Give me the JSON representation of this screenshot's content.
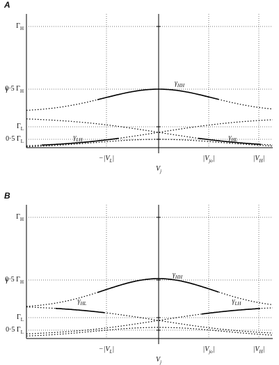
{
  "panels": [
    {
      "label": "A",
      "y_axis_label": "γ",
      "y_ticks": [
        {
          "pre": "Γ",
          "sub": "H"
        },
        {
          "pre": "0·5 Γ",
          "sub": "H"
        },
        {
          "pre": "Γ",
          "sub": "L"
        },
        {
          "pre": "0·5 Γ",
          "sub": "L"
        }
      ],
      "x_ticks": [
        {
          "pre": "−|V",
          "sub": "L",
          "post": "|"
        },
        {
          "pre": "|V",
          "sub": "jo",
          "post": "|"
        },
        {
          "pre": "|V",
          "sub": "H",
          "post": "|"
        }
      ],
      "x_axis_label": {
        "pre": "V",
        "sub": "j"
      },
      "curve_labels": [
        {
          "pre": "γ",
          "sub": "HH"
        },
        {
          "pre": "γ",
          "sub": "LH"
        },
        {
          "pre": "γ",
          "sub": "HL"
        }
      ]
    },
    {
      "label": "B",
      "y_axis_label": "γ",
      "y_ticks": [
        {
          "pre": "Γ",
          "sub": "H"
        },
        {
          "pre": "0·5 Γ",
          "sub": "H"
        },
        {
          "pre": "Γ",
          "sub": "L"
        },
        {
          "pre": "0·5 Γ",
          "sub": "L"
        }
      ],
      "x_ticks": [
        {
          "pre": "−|V",
          "sub": "L",
          "post": "|"
        },
        {
          "pre": "|V",
          "sub": "jo",
          "post": "|"
        },
        {
          "pre": "|V",
          "sub": "H",
          "post": "|"
        }
      ],
      "x_axis_label": {
        "pre": "V",
        "sub": "j"
      },
      "curve_labels": [
        {
          "pre": "γ",
          "sub": "HH"
        },
        {
          "pre": "γ",
          "sub": "HL"
        },
        {
          "pre": "γ",
          "sub": "LH"
        }
      ]
    }
  ]
}
